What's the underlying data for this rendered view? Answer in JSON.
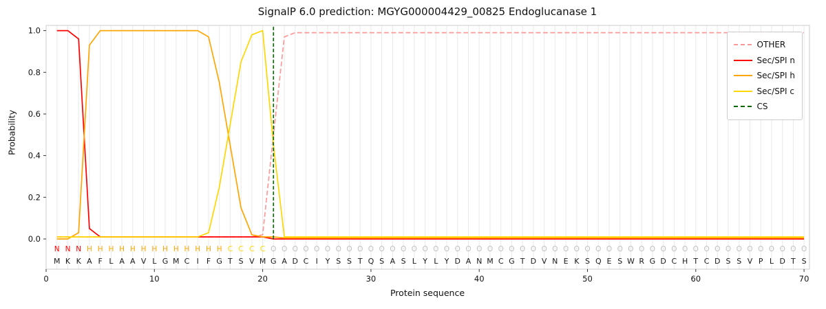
{
  "figure": {
    "title": "SignalP 6.0 prediction: MGYG000004429_00825 Endoglucanase 1",
    "x_axis_label": "Protein sequence",
    "y_axis_label": "Probability"
  },
  "axes": {
    "x_ticks": [
      "0",
      "10",
      "20",
      "30",
      "40",
      "50",
      "60",
      "70"
    ],
    "x_tick_values": [
      0,
      10,
      20,
      30,
      40,
      50,
      60,
      70
    ],
    "y_ticks": [
      "0.0",
      "0.2",
      "0.4",
      "0.6",
      "0.8",
      "1.0"
    ],
    "y_tick_values": [
      0.0,
      0.2,
      0.4,
      0.6,
      0.8,
      1.0
    ],
    "xlim": [
      0,
      70.5
    ],
    "ylim": [
      -0.145,
      1.025
    ],
    "grid": "vertical-per-residue"
  },
  "style": {
    "grid_color": "#e9e9e9",
    "spine_color": "#cccccc",
    "tick_color": "#333333",
    "text_color": "#111111",
    "cs_color": "#006400",
    "sequence_color": "#1a1a1a"
  },
  "legend": {
    "position": "top-right",
    "items": [
      {
        "key": "other",
        "label": "OTHER",
        "color": "#ff9999",
        "dash": true
      },
      {
        "key": "sec-spi-n",
        "label": "Sec/SPI n",
        "color": "#ff0000",
        "dash": false
      },
      {
        "key": "sec-spi-h",
        "label": "Sec/SPI h",
        "color": "#ffa500",
        "dash": false
      },
      {
        "key": "sec-spi-c",
        "label": "Sec/SPI c",
        "color": "#ffd700",
        "dash": false
      },
      {
        "key": "cs",
        "label": "CS",
        "color": "#006400",
        "dash": true
      }
    ]
  },
  "chart_data": {
    "type": "line",
    "title": "SignalP 6.0 prediction: MGYG000004429_00825 Endoglucanase 1",
    "xlabel": "Protein sequence",
    "ylabel": "Probability",
    "x_start": 1,
    "x_step": 1,
    "cs_position": 21,
    "sequence": "MKKAFLAAVLGMCIFGTSVMGADCIYSSTQSASLYLYDANMCGTDVNEKSQESWRGDCHTCDSSVPLDTS",
    "region_labels": "NNNHHHHHHHHHHHHHCCCCOOOOOOOOOOOOOOOOOOOOOOOOOOOOOOOOOOOOOOOOOOOOOOOOOO",
    "label_colors": {
      "N": "#ff0000",
      "H": "#ffa500",
      "C": "#ffd700",
      "O": "#bfbfbf"
    },
    "series": [
      {
        "key": "other",
        "name": "OTHER",
        "color": "#ff9999",
        "dash": true,
        "values": [
          0.01,
          0.01,
          0.01,
          0.01,
          0.01,
          0.01,
          0.01,
          0.01,
          0.01,
          0.01,
          0.01,
          0.01,
          0.01,
          0.01,
          0.01,
          0.01,
          0.01,
          0.01,
          0.01,
          0.02,
          0.5,
          0.97,
          0.99,
          0.99,
          0.99,
          0.99,
          0.99,
          0.99,
          0.99,
          0.99,
          0.99,
          0.99,
          0.99,
          0.99,
          0.99,
          0.99,
          0.99,
          0.99,
          0.99,
          0.99,
          0.99,
          0.99,
          0.99,
          0.99,
          0.99,
          0.99,
          0.99,
          0.99,
          0.99,
          0.99,
          0.99,
          0.99,
          0.99,
          0.99,
          0.99,
          0.99,
          0.99,
          0.99,
          0.99,
          0.99,
          0.99,
          0.99,
          0.99,
          0.99,
          0.99,
          0.99,
          0.99,
          0.99,
          0.99,
          0.99
        ]
      },
      {
        "key": "sec-spi-n",
        "name": "Sec/SPI n",
        "color": "#ff0000",
        "dash": false,
        "values": [
          1.0,
          1.0,
          0.96,
          0.05,
          0.01,
          0.01,
          0.01,
          0.01,
          0.01,
          0.01,
          0.01,
          0.01,
          0.01,
          0.01,
          0.01,
          0.01,
          0.01,
          0.01,
          0.01,
          0.01,
          0.0,
          0.0,
          0.0,
          0.0,
          0.0,
          0.0,
          0.0,
          0.0,
          0.0,
          0.0,
          0.0,
          0.0,
          0.0,
          0.0,
          0.0,
          0.0,
          0.0,
          0.0,
          0.0,
          0.0,
          0.0,
          0.0,
          0.0,
          0.0,
          0.0,
          0.0,
          0.0,
          0.0,
          0.0,
          0.0,
          0.0,
          0.0,
          0.0,
          0.0,
          0.0,
          0.0,
          0.0,
          0.0,
          0.0,
          0.0,
          0.0,
          0.0,
          0.0,
          0.0,
          0.0,
          0.0,
          0.0,
          0.0,
          0.0,
          0.0
        ]
      },
      {
        "key": "sec-spi-h",
        "name": "Sec/SPI h",
        "color": "#ffa500",
        "dash": false,
        "values": [
          0.0,
          0.0,
          0.03,
          0.93,
          1.0,
          1.0,
          1.0,
          1.0,
          1.0,
          1.0,
          1.0,
          1.0,
          1.0,
          1.0,
          0.97,
          0.75,
          0.45,
          0.15,
          0.02,
          0.01,
          0.01,
          0.005,
          0.005,
          0.005,
          0.005,
          0.005,
          0.005,
          0.005,
          0.005,
          0.005,
          0.005,
          0.005,
          0.005,
          0.005,
          0.005,
          0.005,
          0.005,
          0.005,
          0.005,
          0.005,
          0.005,
          0.005,
          0.005,
          0.005,
          0.005,
          0.005,
          0.005,
          0.005,
          0.005,
          0.005,
          0.005,
          0.005,
          0.005,
          0.005,
          0.005,
          0.005,
          0.005,
          0.005,
          0.005,
          0.005,
          0.005,
          0.005,
          0.005,
          0.005,
          0.005,
          0.005,
          0.005,
          0.005,
          0.005,
          0.005
        ]
      },
      {
        "key": "sec-spi-c",
        "name": "Sec/SPI c",
        "color": "#ffd700",
        "dash": false,
        "values": [
          0.01,
          0.01,
          0.01,
          0.01,
          0.01,
          0.01,
          0.01,
          0.01,
          0.01,
          0.01,
          0.01,
          0.01,
          0.01,
          0.01,
          0.03,
          0.25,
          0.55,
          0.85,
          0.98,
          1.0,
          0.45,
          0.01,
          0.01,
          0.01,
          0.01,
          0.01,
          0.01,
          0.01,
          0.01,
          0.01,
          0.01,
          0.01,
          0.01,
          0.01,
          0.01,
          0.01,
          0.01,
          0.01,
          0.01,
          0.01,
          0.01,
          0.01,
          0.01,
          0.01,
          0.01,
          0.01,
          0.01,
          0.01,
          0.01,
          0.01,
          0.01,
          0.01,
          0.01,
          0.01,
          0.01,
          0.01,
          0.01,
          0.01,
          0.01,
          0.01,
          0.01,
          0.01,
          0.01,
          0.01,
          0.01,
          0.01,
          0.01,
          0.01,
          0.01,
          0.01
        ]
      }
    ]
  }
}
